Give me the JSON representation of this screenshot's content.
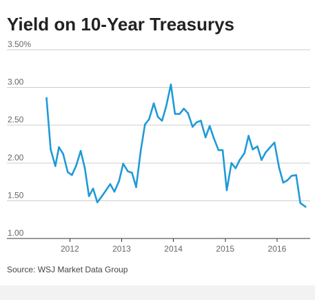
{
  "chart_data": {
    "type": "line",
    "title": "Yield on 10-Year Treasurys",
    "xlabel": "",
    "ylabel": "",
    "ylim": [
      1.0,
      3.5
    ],
    "xlim": [
      2011.45,
      2016.6
    ],
    "y_ticks": [
      "3.50%",
      "3.00",
      "2.50",
      "2.00",
      "1.50",
      "1.00"
    ],
    "y_tick_values": [
      3.5,
      3.0,
      2.5,
      2.0,
      1.5,
      1.0
    ],
    "x_ticks": [
      "2012",
      "2013",
      "2014",
      "2015",
      "2016"
    ],
    "x_tick_values": [
      2012,
      2013,
      2014,
      2015,
      2016
    ],
    "grid": "horizontal",
    "legend": "none",
    "series": [
      {
        "color": "#1f9ad6",
        "x": [
          2011.55,
          2011.63,
          2011.72,
          2011.79,
          2011.87,
          2011.96,
          2012.04,
          2012.12,
          2012.21,
          2012.29,
          2012.37,
          2012.45,
          2012.53,
          2012.62,
          2012.7,
          2012.78,
          2012.86,
          2012.95,
          2013.03,
          2013.12,
          2013.2,
          2013.28,
          2013.37,
          2013.45,
          2013.53,
          2013.62,
          2013.7,
          2013.78,
          2013.86,
          2013.95,
          2014.03,
          2014.12,
          2014.2,
          2014.28,
          2014.37,
          2014.45,
          2014.53,
          2014.62,
          2014.7,
          2014.78,
          2014.87,
          2014.95,
          2015.03,
          2015.12,
          2015.2,
          2015.28,
          2015.37,
          2015.45,
          2015.53,
          2015.62,
          2015.7,
          2015.78,
          2015.87,
          2015.95,
          2016.04,
          2016.12,
          2016.2,
          2016.28,
          2016.37,
          2016.45,
          2016.55
        ],
        "y": [
          2.86,
          2.18,
          1.96,
          2.21,
          2.12,
          1.88,
          1.84,
          1.96,
          2.16,
          1.93,
          1.56,
          1.66,
          1.48,
          1.56,
          1.64,
          1.72,
          1.62,
          1.76,
          1.99,
          1.89,
          1.87,
          1.68,
          2.17,
          2.51,
          2.58,
          2.79,
          2.61,
          2.56,
          2.75,
          3.04,
          2.65,
          2.65,
          2.72,
          2.66,
          2.48,
          2.54,
          2.56,
          2.34,
          2.49,
          2.33,
          2.17,
          2.17,
          1.64,
          2.0,
          1.93,
          2.04,
          2.13,
          2.36,
          2.18,
          2.22,
          2.04,
          2.14,
          2.21,
          2.27,
          1.94,
          1.74,
          1.77,
          1.83,
          1.84,
          1.47,
          1.42
        ]
      }
    ]
  },
  "source": "Source: WSJ Market Data Group"
}
